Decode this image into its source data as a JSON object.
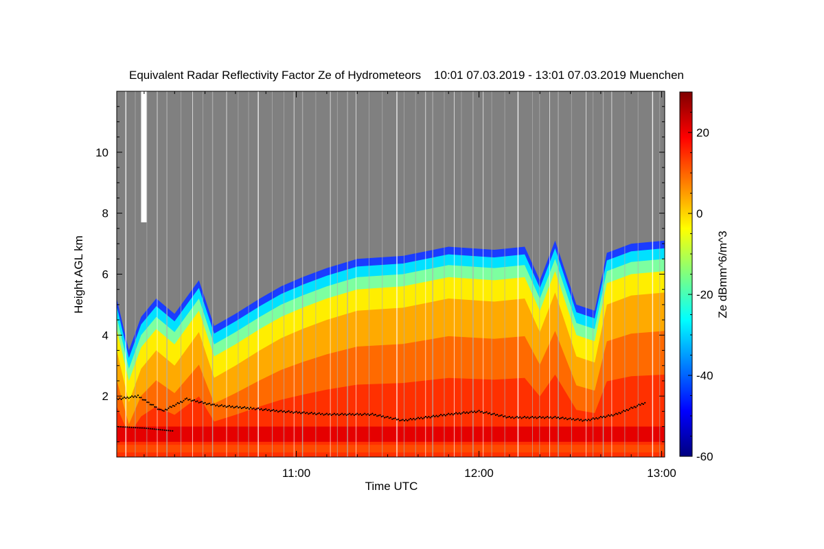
{
  "chart_data": {
    "type": "heatmap",
    "title": "Equivalent Radar Reflectivity Factor Ze of Hydrometeors    10:01 07.03.2019 - 13:01 07.03.2019 Muenchen",
    "xlabel": "Time UTC",
    "ylabel": "Height AGL km",
    "colorbar_label": "Ze dBmm^6/m^3",
    "x_range": [
      "10:01",
      "13:01"
    ],
    "x_ticks": [
      "11:00",
      "12:00",
      "13:00"
    ],
    "y_range": [
      0,
      12
    ],
    "y_ticks": [
      "2",
      "4",
      "6",
      "8",
      "10"
    ],
    "colorbar_range": [
      -60,
      30
    ],
    "colorbar_ticks": [
      "20",
      "0",
      "-20",
      "-40",
      "-60"
    ],
    "colormap": [
      "#00007f",
      "#0000ff",
      "#007fff",
      "#00ffff",
      "#7fff7f",
      "#ffff00",
      "#ff7f00",
      "#ff0000",
      "#7f0000"
    ],
    "no_signal_color": "#808080",
    "echo_top_km": [
      {
        "t": "10:01",
        "h": 5.2
      },
      {
        "t": "10:05",
        "h": 3.5
      },
      {
        "t": "10:09",
        "h": 4.6
      },
      {
        "t": "10:14",
        "h": 5.2
      },
      {
        "t": "10:20",
        "h": 4.7
      },
      {
        "t": "10:28",
        "h": 5.8
      },
      {
        "t": "10:33",
        "h": 4.3
      },
      {
        "t": "10:40",
        "h": 4.7
      },
      {
        "t": "10:48",
        "h": 5.2
      },
      {
        "t": "10:55",
        "h": 5.6
      },
      {
        "t": "11:02",
        "h": 5.9
      },
      {
        "t": "11:10",
        "h": 6.2
      },
      {
        "t": "11:20",
        "h": 6.5
      },
      {
        "t": "11:35",
        "h": 6.6
      },
      {
        "t": "11:50",
        "h": 6.9
      },
      {
        "t": "12:05",
        "h": 6.8
      },
      {
        "t": "12:15",
        "h": 6.9
      },
      {
        "t": "12:20",
        "h": 5.8
      },
      {
        "t": "12:25",
        "h": 7.1
      },
      {
        "t": "12:32",
        "h": 5.0
      },
      {
        "t": "12:38",
        "h": 4.8
      },
      {
        "t": "12:42",
        "h": 6.7
      },
      {
        "t": "12:50",
        "h": 7.0
      },
      {
        "t": "13:01",
        "h": 7.1
      }
    ],
    "cloud_base_km": [
      {
        "t": "10:01",
        "h": 1.9
      },
      {
        "t": "10:08",
        "h": 2.0
      },
      {
        "t": "10:16",
        "h": 1.5
      },
      {
        "t": "10:24",
        "h": 1.9
      },
      {
        "t": "10:33",
        "h": 1.7
      },
      {
        "t": "10:45",
        "h": 1.6
      },
      {
        "t": "10:55",
        "h": 1.5
      },
      {
        "t": "11:10",
        "h": 1.4
      },
      {
        "t": "11:25",
        "h": 1.4
      },
      {
        "t": "11:35",
        "h": 1.2
      },
      {
        "t": "11:50",
        "h": 1.4
      },
      {
        "t": "12:00",
        "h": 1.5
      },
      {
        "t": "12:10",
        "h": 1.3
      },
      {
        "t": "12:25",
        "h": 1.3
      },
      {
        "t": "12:35",
        "h": 1.2
      },
      {
        "t": "12:45",
        "h": 1.4
      },
      {
        "t": "12:55",
        "h": 1.8
      }
    ],
    "secondary_layer_km": [
      {
        "t": "10:01",
        "h": 1.0
      },
      {
        "t": "10:10",
        "h": 0.95
      },
      {
        "t": "10:20",
        "h": 0.85
      }
    ]
  }
}
